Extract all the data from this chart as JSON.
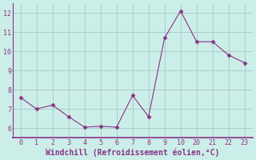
{
  "x_labels": [
    "0",
    "1",
    "2",
    "3",
    "4",
    "5",
    "6",
    "7",
    "8",
    "9",
    "10",
    "20",
    "21",
    "22",
    "23"
  ],
  "y": [
    7.6,
    7.0,
    7.2,
    6.6,
    6.05,
    6.1,
    6.05,
    7.7,
    6.6,
    10.7,
    12.1,
    10.5,
    10.5,
    9.8,
    9.4
  ],
  "line_color": "#883388",
  "marker": "D",
  "marker_size": 2.5,
  "bg_color": "#cceee8",
  "grid_color": "#aacccc",
  "xlabel": "Windchill (Refroidissement éolien,°C)",
  "xlabel_color": "#883388",
  "tick_color": "#883388",
  "ylim": [
    5.5,
    12.5
  ],
  "yticks": [
    6,
    7,
    8,
    9,
    10,
    11,
    12
  ],
  "axis_line_color": "#883388"
}
